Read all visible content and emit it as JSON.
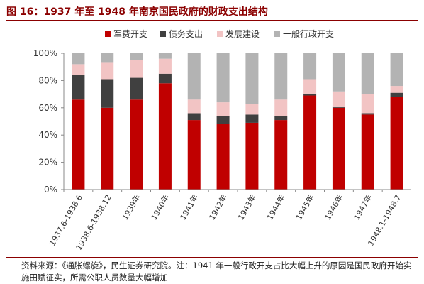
{
  "header": {
    "title": "图 16：1937 年至 1948 年南京国民政府的财政支出结构"
  },
  "footer": {
    "note": "资料来源：《通胀螺旋》，民生证券研究院。注：1941 年一般行政开支占比大幅上升的原因是国民政府开始实施田赋征实，所需公职人员数量大幅增加"
  },
  "chart_data": {
    "type": "bar",
    "stacked": true,
    "categories": [
      "1937.6-1938.6",
      "1938.6-1938.12",
      "1939年",
      "1940年",
      "1941年",
      "1942年",
      "1943年",
      "1944年",
      "1945年",
      "1946年",
      "1947年",
      "1948.1-1948.7"
    ],
    "series": [
      {
        "name": "军费开支",
        "color": "#c00000",
        "values": [
          66,
          60,
          66,
          78,
          51,
          48,
          49,
          51,
          69,
          60,
          55,
          68
        ]
      },
      {
        "name": "债务支出",
        "color": "#404040",
        "values": [
          18,
          21,
          16,
          7,
          5,
          6,
          6,
          3,
          1,
          1,
          1,
          3
        ]
      },
      {
        "name": "发展建设",
        "color": "#f2c4c4",
        "values": [
          8,
          12,
          13,
          11,
          10,
          10,
          8,
          12,
          11,
          11,
          14,
          5
        ]
      },
      {
        "name": "一般行政开支",
        "color": "#b3b3b3",
        "values": [
          8,
          7,
          5,
          4,
          34,
          36,
          37,
          34,
          19,
          28,
          30,
          24
        ]
      }
    ],
    "ylim": [
      0,
      100
    ],
    "yticks": [
      "0%",
      "20%",
      "40%",
      "60%",
      "80%",
      "100%"
    ],
    "legend_position": "top",
    "grid": false
  }
}
